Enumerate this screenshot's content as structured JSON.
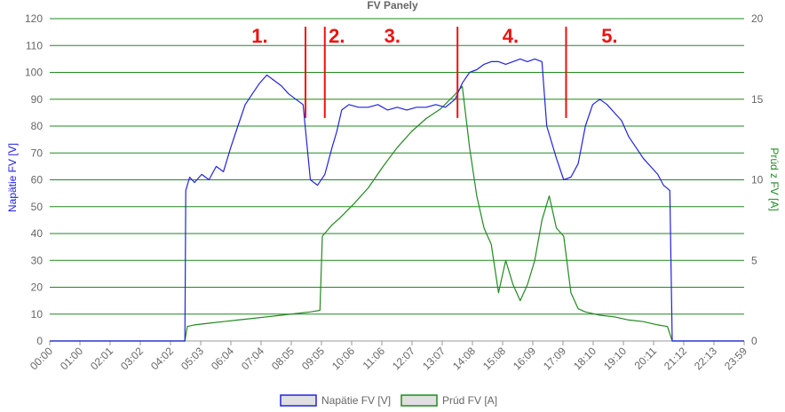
{
  "chart_data": {
    "type": "line",
    "title": "FV Panely",
    "x_labels": [
      "00:00",
      "01:00",
      "02:01",
      "03:02",
      "04:02",
      "05:03",
      "06:04",
      "07:04",
      "08:05",
      "09:05",
      "10:06",
      "11:06",
      "12:07",
      "13:07",
      "14:08",
      "15:08",
      "16:09",
      "17:09",
      "18:10",
      "19:10",
      "20:11",
      "21:12",
      "22:13",
      "23:59"
    ],
    "y_left": {
      "label": "Napätie FV [V]",
      "min": 0,
      "max": 120,
      "step": 10
    },
    "y_right": {
      "label": "Prúd z FV [A]",
      "min": 0,
      "max": 20,
      "step": 5
    },
    "grid": true,
    "legend_position": "bottom",
    "colors": {
      "voltage": "#2222dd",
      "current": "#228822",
      "grid": "#1f8a1f",
      "marker": "#ee1111"
    },
    "markers": [
      {
        "label": "1.",
        "time": "07:15"
      },
      {
        "label": "2.",
        "time": "09:55"
      },
      {
        "label": "3.",
        "time": "11:50"
      },
      {
        "label": "4.",
        "time": "15:55"
      },
      {
        "label": "5.",
        "time": "19:20"
      }
    ],
    "separators": [
      "08:50",
      "09:30",
      "14:05",
      "17:50"
    ],
    "series": [
      {
        "name": "Napätie FV [V]",
        "axis": "left",
        "points": [
          [
            "00:00",
            0
          ],
          [
            "04:40",
            0
          ],
          [
            "04:42",
            56
          ],
          [
            "04:50",
            61
          ],
          [
            "05:00",
            59
          ],
          [
            "05:15",
            62
          ],
          [
            "05:30",
            60
          ],
          [
            "05:45",
            65
          ],
          [
            "06:00",
            63
          ],
          [
            "06:15",
            72
          ],
          [
            "06:30",
            80
          ],
          [
            "06:45",
            88
          ],
          [
            "07:00",
            92
          ],
          [
            "07:15",
            96
          ],
          [
            "07:30",
            99
          ],
          [
            "07:45",
            97
          ],
          [
            "08:00",
            95
          ],
          [
            "08:15",
            92
          ],
          [
            "08:30",
            90
          ],
          [
            "08:45",
            88
          ],
          [
            "09:00",
            60
          ],
          [
            "09:15",
            58
          ],
          [
            "09:30",
            62
          ],
          [
            "09:45",
            72
          ],
          [
            "09:55",
            78
          ],
          [
            "10:05",
            86
          ],
          [
            "10:20",
            88
          ],
          [
            "10:40",
            87
          ],
          [
            "11:00",
            87
          ],
          [
            "11:20",
            88
          ],
          [
            "11:40",
            86
          ],
          [
            "12:00",
            87
          ],
          [
            "12:20",
            86
          ],
          [
            "12:40",
            87
          ],
          [
            "13:00",
            87
          ],
          [
            "13:20",
            88
          ],
          [
            "13:40",
            87
          ],
          [
            "14:00",
            90
          ],
          [
            "14:15",
            96
          ],
          [
            "14:30",
            100
          ],
          [
            "14:45",
            101
          ],
          [
            "15:00",
            103
          ],
          [
            "15:15",
            104
          ],
          [
            "15:30",
            104
          ],
          [
            "15:45",
            103
          ],
          [
            "16:00",
            104
          ],
          [
            "16:15",
            105
          ],
          [
            "16:30",
            104
          ],
          [
            "16:45",
            105
          ],
          [
            "17:00",
            104
          ],
          [
            "17:10",
            80
          ],
          [
            "17:30",
            68
          ],
          [
            "17:45",
            60
          ],
          [
            "18:00",
            61
          ],
          [
            "18:15",
            66
          ],
          [
            "18:30",
            80
          ],
          [
            "18:45",
            88
          ],
          [
            "19:00",
            90
          ],
          [
            "19:15",
            88
          ],
          [
            "19:30",
            85
          ],
          [
            "19:45",
            82
          ],
          [
            "20:00",
            76
          ],
          [
            "20:15",
            72
          ],
          [
            "20:30",
            68
          ],
          [
            "20:45",
            65
          ],
          [
            "21:00",
            62
          ],
          [
            "21:12",
            58
          ],
          [
            "21:25",
            56
          ],
          [
            "21:30",
            0
          ],
          [
            "23:59",
            0
          ]
        ]
      },
      {
        "name": "Prúd FV [A]",
        "axis": "right",
        "points": [
          [
            "00:00",
            0
          ],
          [
            "04:40",
            0
          ],
          [
            "04:45",
            0.9
          ],
          [
            "05:00",
            1.0
          ],
          [
            "05:30",
            1.1
          ],
          [
            "06:00",
            1.2
          ],
          [
            "06:30",
            1.3
          ],
          [
            "07:00",
            1.4
          ],
          [
            "07:30",
            1.5
          ],
          [
            "08:00",
            1.6
          ],
          [
            "08:30",
            1.7
          ],
          [
            "09:00",
            1.8
          ],
          [
            "09:20",
            1.9
          ],
          [
            "09:25",
            6.5
          ],
          [
            "09:45",
            7.2
          ],
          [
            "10:00",
            7.6
          ],
          [
            "10:30",
            8.5
          ],
          [
            "11:00",
            9.5
          ],
          [
            "11:30",
            10.8
          ],
          [
            "12:00",
            12.0
          ],
          [
            "12:30",
            13.0
          ],
          [
            "13:00",
            13.8
          ],
          [
            "13:30",
            14.4
          ],
          [
            "14:00",
            15.3
          ],
          [
            "14:15",
            15.8
          ],
          [
            "14:30",
            12.0
          ],
          [
            "14:45",
            9.0
          ],
          [
            "15:00",
            7.0
          ],
          [
            "15:15",
            6.0
          ],
          [
            "15:30",
            3.0
          ],
          [
            "15:45",
            5.0
          ],
          [
            "16:00",
            3.5
          ],
          [
            "16:15",
            2.5
          ],
          [
            "16:30",
            3.5
          ],
          [
            "16:45",
            5.0
          ],
          [
            "17:00",
            7.5
          ],
          [
            "17:15",
            9.0
          ],
          [
            "17:30",
            7.0
          ],
          [
            "17:45",
            6.5
          ],
          [
            "18:00",
            3.0
          ],
          [
            "18:15",
            2.0
          ],
          [
            "18:30",
            1.8
          ],
          [
            "19:00",
            1.6
          ],
          [
            "19:30",
            1.5
          ],
          [
            "20:00",
            1.3
          ],
          [
            "20:30",
            1.2
          ],
          [
            "21:00",
            1.0
          ],
          [
            "21:20",
            0.9
          ],
          [
            "21:30",
            0
          ],
          [
            "23:59",
            0
          ]
        ]
      }
    ]
  }
}
